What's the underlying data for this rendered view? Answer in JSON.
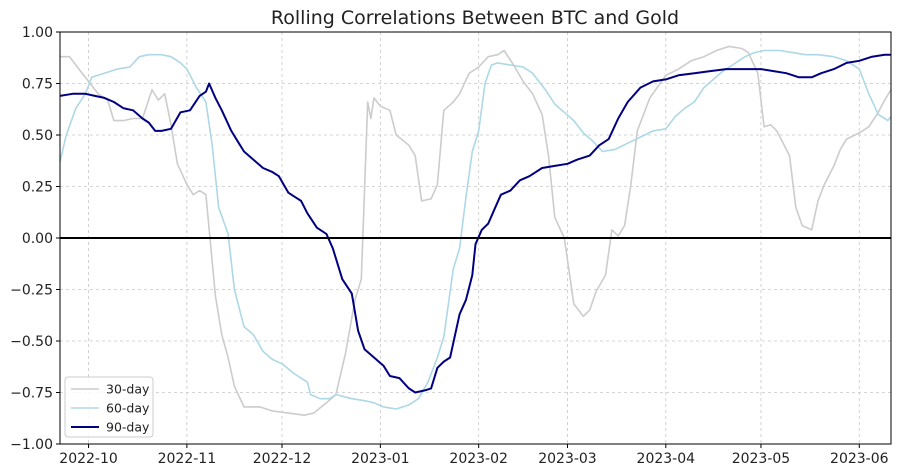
{
  "chart_data": {
    "type": "line",
    "title": "Rolling Correlations Between BTC and Gold",
    "xlabel": "",
    "ylabel": "",
    "x_range": [
      "2022-09-22",
      "2023-06-11"
    ],
    "ylim": [
      -1.0,
      1.0
    ],
    "yticks": [
      -1.0,
      -0.75,
      -0.5,
      -0.25,
      0.0,
      0.25,
      0.5,
      0.75,
      1.0
    ],
    "ytick_labels": [
      "−1.00",
      "−0.75",
      "−0.50",
      "−0.25",
      "0.00",
      "0.25",
      "0.50",
      "0.75",
      "1.00"
    ],
    "xticks": [
      "2022-10-01",
      "2022-11-01",
      "2022-12-01",
      "2023-01-01",
      "2023-02-01",
      "2023-03-01",
      "2023-04-01",
      "2023-05-01",
      "2023-06-01"
    ],
    "xtick_labels": [
      "2022-10",
      "2022-11",
      "2022-12",
      "2023-01",
      "2023-02",
      "2023-03",
      "2023-04",
      "2023-05",
      "2023-06"
    ],
    "grid": true,
    "zero_line": true,
    "legend_position": "lower-left",
    "series": [
      {
        "name": "30-day",
        "color": "#cccccc",
        "points": [
          [
            "2022-09-22",
            0.88
          ],
          [
            "2022-09-25",
            0.88
          ],
          [
            "2022-09-28",
            0.82
          ],
          [
            "2022-10-01",
            0.76
          ],
          [
            "2022-10-04",
            0.7
          ],
          [
            "2022-10-07",
            0.67
          ],
          [
            "2022-10-09",
            0.57
          ],
          [
            "2022-10-12",
            0.57
          ],
          [
            "2022-10-15",
            0.58
          ],
          [
            "2022-10-18",
            0.58
          ],
          [
            "2022-10-21",
            0.72
          ],
          [
            "2022-10-23",
            0.67
          ],
          [
            "2022-10-25",
            0.7
          ],
          [
            "2022-10-27",
            0.55
          ],
          [
            "2022-10-29",
            0.36
          ],
          [
            "2022-11-01",
            0.26
          ],
          [
            "2022-11-03",
            0.21
          ],
          [
            "2022-11-05",
            0.23
          ],
          [
            "2022-11-07",
            0.21
          ],
          [
            "2022-11-10",
            -0.28
          ],
          [
            "2022-11-12",
            -0.47
          ],
          [
            "2022-11-14",
            -0.58
          ],
          [
            "2022-11-16",
            -0.72
          ],
          [
            "2022-11-19",
            -0.82
          ],
          [
            "2022-11-24",
            -0.82
          ],
          [
            "2022-11-28",
            -0.84
          ],
          [
            "2022-12-03",
            -0.85
          ],
          [
            "2022-12-08",
            -0.86
          ],
          [
            "2022-12-11",
            -0.85
          ],
          [
            "2022-12-15",
            -0.8
          ],
          [
            "2022-12-18",
            -0.76
          ],
          [
            "2022-12-21",
            -0.56
          ],
          [
            "2022-12-24",
            -0.3
          ],
          [
            "2022-12-26",
            -0.2
          ],
          [
            "2022-12-28",
            0.66
          ],
          [
            "2022-12-29",
            0.58
          ],
          [
            "2022-12-30",
            0.68
          ],
          [
            "2023-01-01",
            0.64
          ],
          [
            "2023-01-04",
            0.62
          ],
          [
            "2023-01-06",
            0.5
          ],
          [
            "2023-01-10",
            0.45
          ],
          [
            "2023-01-12",
            0.4
          ],
          [
            "2023-01-14",
            0.18
          ],
          [
            "2023-01-17",
            0.19
          ],
          [
            "2023-01-19",
            0.26
          ],
          [
            "2023-01-21",
            0.62
          ],
          [
            "2023-01-24",
            0.66
          ],
          [
            "2023-01-26",
            0.7
          ],
          [
            "2023-01-29",
            0.8
          ],
          [
            "2023-02-01",
            0.83
          ],
          [
            "2023-02-04",
            0.88
          ],
          [
            "2023-02-07",
            0.89
          ],
          [
            "2023-02-09",
            0.91
          ],
          [
            "2023-02-12",
            0.84
          ],
          [
            "2023-02-15",
            0.76
          ],
          [
            "2023-02-18",
            0.7
          ],
          [
            "2023-02-21",
            0.6
          ],
          [
            "2023-02-23",
            0.4
          ],
          [
            "2023-02-25",
            0.1
          ],
          [
            "2023-02-28",
            0.0
          ],
          [
            "2023-03-03",
            -0.32
          ],
          [
            "2023-03-06",
            -0.38
          ],
          [
            "2023-03-08",
            -0.35
          ],
          [
            "2023-03-10",
            -0.26
          ],
          [
            "2023-03-13",
            -0.18
          ],
          [
            "2023-03-15",
            0.04
          ],
          [
            "2023-03-17",
            0.01
          ],
          [
            "2023-03-19",
            0.06
          ],
          [
            "2023-03-21",
            0.26
          ],
          [
            "2023-03-23",
            0.52
          ],
          [
            "2023-03-27",
            0.68
          ],
          [
            "2023-04-01",
            0.79
          ],
          [
            "2023-04-05",
            0.82
          ],
          [
            "2023-04-09",
            0.86
          ],
          [
            "2023-04-13",
            0.88
          ],
          [
            "2023-04-17",
            0.91
          ],
          [
            "2023-04-21",
            0.93
          ],
          [
            "2023-04-25",
            0.92
          ],
          [
            "2023-04-27",
            0.9
          ],
          [
            "2023-04-30",
            0.8
          ],
          [
            "2023-05-02",
            0.54
          ],
          [
            "2023-05-04",
            0.55
          ],
          [
            "2023-05-06",
            0.52
          ],
          [
            "2023-05-08",
            0.46
          ],
          [
            "2023-05-10",
            0.4
          ],
          [
            "2023-05-12",
            0.15
          ],
          [
            "2023-05-14",
            0.06
          ],
          [
            "2023-05-17",
            0.04
          ],
          [
            "2023-05-19",
            0.18
          ],
          [
            "2023-05-21",
            0.26
          ],
          [
            "2023-05-24",
            0.35
          ],
          [
            "2023-05-26",
            0.43
          ],
          [
            "2023-05-28",
            0.48
          ],
          [
            "2023-06-01",
            0.51
          ],
          [
            "2023-06-04",
            0.54
          ],
          [
            "2023-06-07",
            0.61
          ],
          [
            "2023-06-09",
            0.67
          ],
          [
            "2023-06-11",
            0.72
          ]
        ]
      },
      {
        "name": "60-day",
        "color": "#add8e6",
        "points": [
          [
            "2022-09-22",
            0.37
          ],
          [
            "2022-09-24",
            0.5
          ],
          [
            "2022-09-27",
            0.63
          ],
          [
            "2022-09-30",
            0.7
          ],
          [
            "2022-10-02",
            0.78
          ],
          [
            "2022-10-06",
            0.8
          ],
          [
            "2022-10-10",
            0.82
          ],
          [
            "2022-10-14",
            0.83
          ],
          [
            "2022-10-17",
            0.88
          ],
          [
            "2022-10-20",
            0.89
          ],
          [
            "2022-10-24",
            0.89
          ],
          [
            "2022-10-27",
            0.88
          ],
          [
            "2022-10-30",
            0.85
          ],
          [
            "2022-11-01",
            0.82
          ],
          [
            "2022-11-04",
            0.73
          ],
          [
            "2022-11-07",
            0.66
          ],
          [
            "2022-11-09",
            0.45
          ],
          [
            "2022-11-11",
            0.15
          ],
          [
            "2022-11-14",
            0.02
          ],
          [
            "2022-11-16",
            -0.25
          ],
          [
            "2022-11-19",
            -0.43
          ],
          [
            "2022-11-22",
            -0.47
          ],
          [
            "2022-11-25",
            -0.55
          ],
          [
            "2022-11-28",
            -0.59
          ],
          [
            "2022-12-01",
            -0.61
          ],
          [
            "2022-12-05",
            -0.66
          ],
          [
            "2022-12-09",
            -0.7
          ],
          [
            "2022-12-10",
            -0.76
          ],
          [
            "2022-12-13",
            -0.78
          ],
          [
            "2022-12-16",
            -0.78
          ],
          [
            "2022-12-18",
            -0.76
          ],
          [
            "2022-12-23",
            -0.78
          ],
          [
            "2022-12-27",
            -0.79
          ],
          [
            "2022-12-30",
            -0.8
          ],
          [
            "2023-01-02",
            -0.82
          ],
          [
            "2023-01-06",
            -0.83
          ],
          [
            "2023-01-10",
            -0.81
          ],
          [
            "2023-01-13",
            -0.78
          ],
          [
            "2023-01-16",
            -0.7
          ],
          [
            "2023-01-19",
            -0.58
          ],
          [
            "2023-01-21",
            -0.48
          ],
          [
            "2023-01-24",
            -0.15
          ],
          [
            "2023-01-26",
            -0.05
          ],
          [
            "2023-01-28",
            0.2
          ],
          [
            "2023-01-30",
            0.42
          ],
          [
            "2023-02-01",
            0.52
          ],
          [
            "2023-02-03",
            0.75
          ],
          [
            "2023-02-05",
            0.84
          ],
          [
            "2023-02-07",
            0.85
          ],
          [
            "2023-02-11",
            0.84
          ],
          [
            "2023-02-15",
            0.83
          ],
          [
            "2023-02-18",
            0.8
          ],
          [
            "2023-02-22",
            0.72
          ],
          [
            "2023-02-25",
            0.65
          ],
          [
            "2023-02-28",
            0.61
          ],
          [
            "2023-03-03",
            0.57
          ],
          [
            "2023-03-06",
            0.51
          ],
          [
            "2023-03-09",
            0.47
          ],
          [
            "2023-03-12",
            0.42
          ],
          [
            "2023-03-16",
            0.43
          ],
          [
            "2023-03-20",
            0.46
          ],
          [
            "2023-03-24",
            0.49
          ],
          [
            "2023-03-28",
            0.52
          ],
          [
            "2023-04-01",
            0.53
          ],
          [
            "2023-04-04",
            0.59
          ],
          [
            "2023-04-07",
            0.63
          ],
          [
            "2023-04-10",
            0.66
          ],
          [
            "2023-04-13",
            0.73
          ],
          [
            "2023-04-16",
            0.77
          ],
          [
            "2023-04-19",
            0.81
          ],
          [
            "2023-04-22",
            0.84
          ],
          [
            "2023-04-26",
            0.88
          ],
          [
            "2023-04-29",
            0.9
          ],
          [
            "2023-05-02",
            0.91
          ],
          [
            "2023-05-07",
            0.91
          ],
          [
            "2023-05-11",
            0.9
          ],
          [
            "2023-05-15",
            0.89
          ],
          [
            "2023-05-19",
            0.89
          ],
          [
            "2023-05-24",
            0.88
          ],
          [
            "2023-05-28",
            0.86
          ],
          [
            "2023-06-01",
            0.82
          ],
          [
            "2023-06-04",
            0.7
          ],
          [
            "2023-06-07",
            0.6
          ],
          [
            "2023-06-10",
            0.57
          ],
          [
            "2023-06-11",
            0.59
          ]
        ]
      },
      {
        "name": "90-day",
        "color": "#000080",
        "points": [
          [
            "2022-09-22",
            0.69
          ],
          [
            "2022-09-26",
            0.7
          ],
          [
            "2022-09-30",
            0.7
          ],
          [
            "2022-10-03",
            0.69
          ],
          [
            "2022-10-06",
            0.68
          ],
          [
            "2022-10-09",
            0.66
          ],
          [
            "2022-10-12",
            0.63
          ],
          [
            "2022-10-15",
            0.62
          ],
          [
            "2022-10-18",
            0.58
          ],
          [
            "2022-10-20",
            0.56
          ],
          [
            "2022-10-22",
            0.52
          ],
          [
            "2022-10-24",
            0.52
          ],
          [
            "2022-10-27",
            0.53
          ],
          [
            "2022-10-30",
            0.61
          ],
          [
            "2022-11-02",
            0.62
          ],
          [
            "2022-11-05",
            0.69
          ],
          [
            "2022-11-07",
            0.71
          ],
          [
            "2022-11-08",
            0.75
          ],
          [
            "2022-11-10",
            0.68
          ],
          [
            "2022-11-12",
            0.62
          ],
          [
            "2022-11-15",
            0.52
          ],
          [
            "2022-11-17",
            0.47
          ],
          [
            "2022-11-19",
            0.42
          ],
          [
            "2022-11-22",
            0.38
          ],
          [
            "2022-11-25",
            0.34
          ],
          [
            "2022-11-28",
            0.32
          ],
          [
            "2022-11-30",
            0.3
          ],
          [
            "2022-12-03",
            0.22
          ],
          [
            "2022-12-05",
            0.2
          ],
          [
            "2022-12-07",
            0.18
          ],
          [
            "2022-12-09",
            0.12
          ],
          [
            "2022-12-12",
            0.05
          ],
          [
            "2022-12-15",
            0.02
          ],
          [
            "2022-12-17",
            -0.05
          ],
          [
            "2022-12-20",
            -0.2
          ],
          [
            "2022-12-23",
            -0.27
          ],
          [
            "2022-12-25",
            -0.45
          ],
          [
            "2022-12-27",
            -0.54
          ],
          [
            "2022-12-30",
            -0.58
          ],
          [
            "2023-01-02",
            -0.62
          ],
          [
            "2023-01-04",
            -0.67
          ],
          [
            "2023-01-07",
            -0.68
          ],
          [
            "2023-01-10",
            -0.73
          ],
          [
            "2023-01-12",
            -0.75
          ],
          [
            "2023-01-15",
            -0.74
          ],
          [
            "2023-01-17",
            -0.73
          ],
          [
            "2023-01-19",
            -0.63
          ],
          [
            "2023-01-21",
            -0.6
          ],
          [
            "2023-01-23",
            -0.58
          ],
          [
            "2023-01-26",
            -0.37
          ],
          [
            "2023-01-28",
            -0.3
          ],
          [
            "2023-01-30",
            -0.18
          ],
          [
            "2023-01-31",
            -0.03
          ],
          [
            "2023-02-02",
            0.04
          ],
          [
            "2023-02-04",
            0.07
          ],
          [
            "2023-02-06",
            0.14
          ],
          [
            "2023-02-08",
            0.21
          ],
          [
            "2023-02-11",
            0.23
          ],
          [
            "2023-02-14",
            0.28
          ],
          [
            "2023-02-17",
            0.3
          ],
          [
            "2023-02-21",
            0.34
          ],
          [
            "2023-02-25",
            0.35
          ],
          [
            "2023-03-01",
            0.36
          ],
          [
            "2023-03-04",
            0.38
          ],
          [
            "2023-03-08",
            0.4
          ],
          [
            "2023-03-11",
            0.45
          ],
          [
            "2023-03-14",
            0.48
          ],
          [
            "2023-03-17",
            0.58
          ],
          [
            "2023-03-20",
            0.66
          ],
          [
            "2023-03-24",
            0.73
          ],
          [
            "2023-03-28",
            0.76
          ],
          [
            "2023-04-01",
            0.77
          ],
          [
            "2023-04-05",
            0.79
          ],
          [
            "2023-04-10",
            0.8
          ],
          [
            "2023-04-15",
            0.81
          ],
          [
            "2023-04-20",
            0.82
          ],
          [
            "2023-04-25",
            0.82
          ],
          [
            "2023-05-01",
            0.82
          ],
          [
            "2023-05-05",
            0.81
          ],
          [
            "2023-05-09",
            0.8
          ],
          [
            "2023-05-13",
            0.78
          ],
          [
            "2023-05-17",
            0.78
          ],
          [
            "2023-05-20",
            0.8
          ],
          [
            "2023-05-24",
            0.82
          ],
          [
            "2023-05-28",
            0.85
          ],
          [
            "2023-06-01",
            0.86
          ],
          [
            "2023-06-05",
            0.88
          ],
          [
            "2023-06-09",
            0.89
          ],
          [
            "2023-06-11",
            0.89
          ]
        ]
      }
    ]
  }
}
